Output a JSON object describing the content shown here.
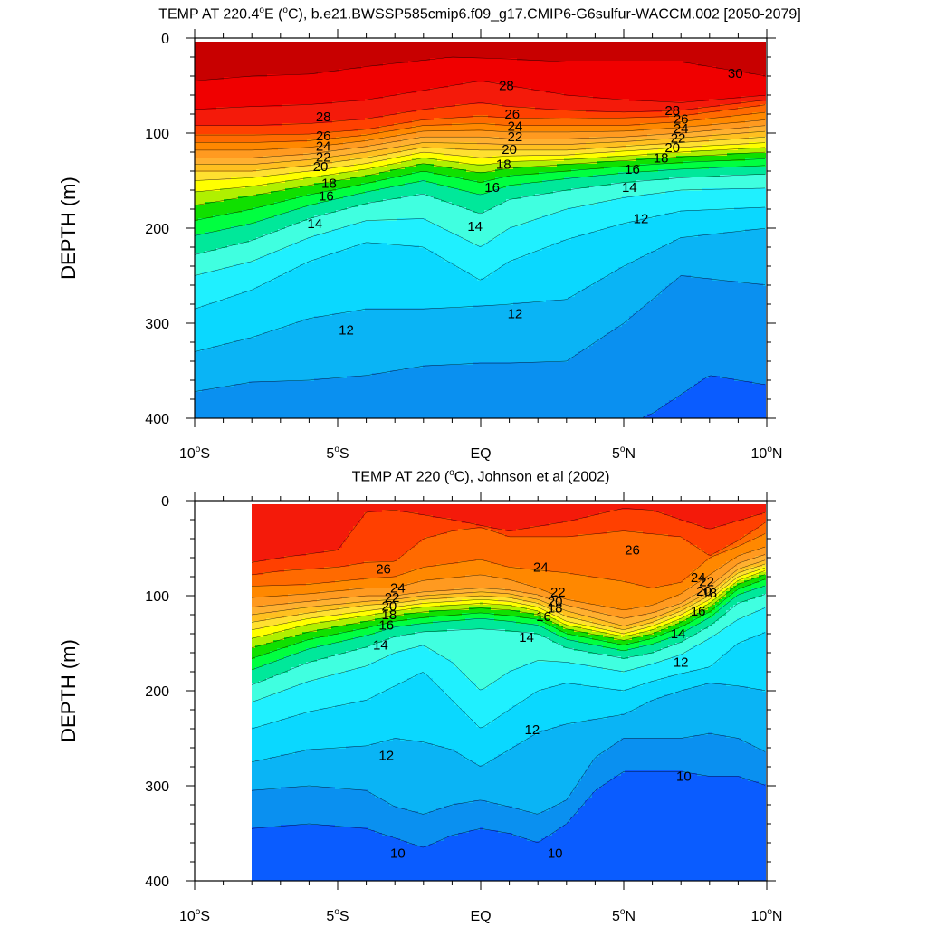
{
  "chart_data": [
    {
      "type": "heatmap",
      "plot": "filled-contour depth-latitude section",
      "title": {
        "prefix": "TEMP AT 220.4",
        "sup1": "o",
        "mid": "E (",
        "sup2": "o",
        "suffix": "C), b.e21.BWSSP585cmip6.f09_g17.CMIP6-G6sulfur-WACCM.002 [2050-2079]"
      },
      "ylabel": "DEPTH (m)",
      "xticks": [
        {
          "base": "10",
          "sup": "o",
          "hemi": "S",
          "lat": -10
        },
        {
          "base": "5",
          "sup": "o",
          "hemi": "S",
          "lat": -5
        },
        {
          "base": "EQ",
          "sup": "",
          "hemi": "",
          "lat": 0
        },
        {
          "base": "5",
          "sup": "o",
          "hemi": "N",
          "lat": 5
        },
        {
          "base": "10",
          "sup": "o",
          "hemi": "N",
          "lat": 10
        }
      ],
      "yticks": [
        "0",
        "100",
        "200",
        "300",
        "400"
      ],
      "xlim": [
        -10,
        10
      ],
      "ylim": [
        0,
        400
      ],
      "y_reversed": true,
      "data_lat_range": [
        -10,
        10
      ],
      "contour_labels": [
        {
          "text": "28",
          "lat": -5.5,
          "depth": 83
        },
        {
          "text": "26",
          "lat": -5.5,
          "depth": 103
        },
        {
          "text": "24",
          "lat": -5.5,
          "depth": 114
        },
        {
          "text": "22",
          "lat": -5.5,
          "depth": 125
        },
        {
          "text": "20",
          "lat": -5.6,
          "depth": 135
        },
        {
          "text": "18",
          "lat": -5.3,
          "depth": 153
        },
        {
          "text": "16",
          "lat": -5.4,
          "depth": 166
        },
        {
          "text": "14",
          "lat": -5.8,
          "depth": 195
        },
        {
          "text": "12",
          "lat": -4.7,
          "depth": 307
        },
        {
          "text": "28",
          "lat": 0.9,
          "depth": 50
        },
        {
          "text": "26",
          "lat": 1.1,
          "depth": 80
        },
        {
          "text": "24",
          "lat": 1.2,
          "depth": 93
        },
        {
          "text": "22",
          "lat": 1.2,
          "depth": 104
        },
        {
          "text": "20",
          "lat": 1.0,
          "depth": 117
        },
        {
          "text": "18",
          "lat": 0.8,
          "depth": 133
        },
        {
          "text": "16",
          "lat": 0.4,
          "depth": 157
        },
        {
          "text": "14",
          "lat": -0.2,
          "depth": 198
        },
        {
          "text": "12",
          "lat": 1.2,
          "depth": 290
        },
        {
          "text": "30",
          "lat": 8.9,
          "depth": 37
        },
        {
          "text": "28",
          "lat": 6.7,
          "depth": 76
        },
        {
          "text": "26",
          "lat": 7.0,
          "depth": 85
        },
        {
          "text": "24",
          "lat": 7.0,
          "depth": 95
        },
        {
          "text": "22",
          "lat": 6.9,
          "depth": 105
        },
        {
          "text": "20",
          "lat": 6.7,
          "depth": 115
        },
        {
          "text": "18",
          "lat": 6.3,
          "depth": 126
        },
        {
          "text": "16",
          "lat": 5.3,
          "depth": 138
        },
        {
          "text": "14",
          "lat": 5.2,
          "depth": 157
        },
        {
          "text": "12",
          "lat": 5.6,
          "depth": 190
        }
      ]
    },
    {
      "type": "heatmap",
      "plot": "filled-contour depth-latitude section",
      "title": {
        "prefix": "TEMP AT 220 (",
        "sup1": "o",
        "mid": "C), Johnson et al (2002)",
        "sup2": "",
        "suffix": ""
      },
      "ylabel": "DEPTH (m)",
      "xticks": [
        {
          "base": "10",
          "sup": "o",
          "hemi": "S",
          "lat": -10
        },
        {
          "base": "5",
          "sup": "o",
          "hemi": "S",
          "lat": -5
        },
        {
          "base": "EQ",
          "sup": "",
          "hemi": "",
          "lat": 0
        },
        {
          "base": "5",
          "sup": "o",
          "hemi": "N",
          "lat": 5
        },
        {
          "base": "10",
          "sup": "o",
          "hemi": "N",
          "lat": 10
        }
      ],
      "yticks": [
        "0",
        "100",
        "200",
        "300",
        "400"
      ],
      "xlim": [
        -10,
        10
      ],
      "ylim": [
        0,
        400
      ],
      "y_reversed": true,
      "data_lat_range": [
        -8,
        10
      ],
      "contour_labels": [
        {
          "text": "26",
          "lat": -3.4,
          "depth": 72
        },
        {
          "text": "24",
          "lat": -2.9,
          "depth": 92
        },
        {
          "text": "22",
          "lat": -3.1,
          "depth": 102
        },
        {
          "text": "20",
          "lat": -3.2,
          "depth": 111
        },
        {
          "text": "18",
          "lat": -3.2,
          "depth": 120
        },
        {
          "text": "16",
          "lat": -3.3,
          "depth": 131
        },
        {
          "text": "14",
          "lat": -3.5,
          "depth": 152
        },
        {
          "text": "24",
          "lat": 2.1,
          "depth": 70
        },
        {
          "text": "22",
          "lat": 2.7,
          "depth": 96
        },
        {
          "text": "20",
          "lat": 2.6,
          "depth": 106
        },
        {
          "text": "18",
          "lat": 2.6,
          "depth": 113
        },
        {
          "text": "16",
          "lat": 2.2,
          "depth": 122
        },
        {
          "text": "14",
          "lat": 1.6,
          "depth": 144
        },
        {
          "text": "26",
          "lat": 5.3,
          "depth": 52
        },
        {
          "text": "24",
          "lat": 7.6,
          "depth": 81
        },
        {
          "text": "22",
          "lat": 7.9,
          "depth": 85
        },
        {
          "text": "20",
          "lat": 7.8,
          "depth": 95
        },
        {
          "text": "18",
          "lat": 8.0,
          "depth": 97
        },
        {
          "text": "16",
          "lat": 7.6,
          "depth": 116
        },
        {
          "text": "14",
          "lat": 6.9,
          "depth": 140
        },
        {
          "text": "12",
          "lat": 7.0,
          "depth": 170
        },
        {
          "text": "12",
          "lat": 1.8,
          "depth": 241
        },
        {
          "text": "12",
          "lat": -3.3,
          "depth": 268
        },
        {
          "text": "10",
          "lat": 7.1,
          "depth": 290
        },
        {
          "text": "10",
          "lat": -2.9,
          "depth": 371
        },
        {
          "text": "10",
          "lat": 2.6,
          "depth": 371
        }
      ]
    }
  ]
}
